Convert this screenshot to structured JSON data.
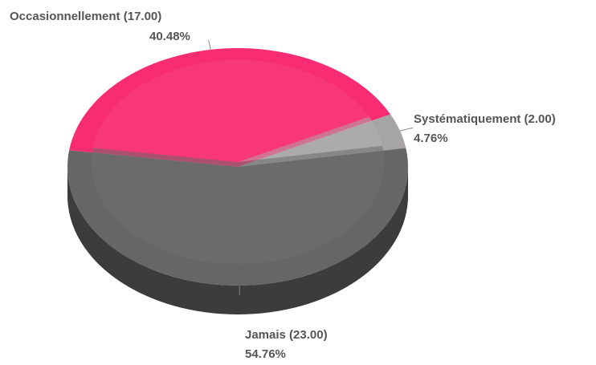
{
  "chart_data": {
    "type": "pie",
    "style": "3d",
    "title": "",
    "slices": [
      {
        "label": "Occasionnellement",
        "value": 17.0,
        "value_text": "(17.00)",
        "percent": 40.48,
        "percent_text": "40.48%",
        "color": "#f72c72",
        "highlight_color": "#f9417f"
      },
      {
        "label": "Systématiquement",
        "value": 2.0,
        "value_text": "(2.00)",
        "percent": 4.76,
        "percent_text": "4.76%",
        "color": "#a6a4a5",
        "highlight_color": "#b0aeaf"
      },
      {
        "label": "Jamais",
        "value": 23.0,
        "value_text": "(23.00)",
        "percent": 54.76,
        "percent_text": "54.76%",
        "color": "#666666",
        "highlight_color": "#707070"
      }
    ],
    "side_color": "#3c3c3c",
    "label_color": "#555555"
  }
}
